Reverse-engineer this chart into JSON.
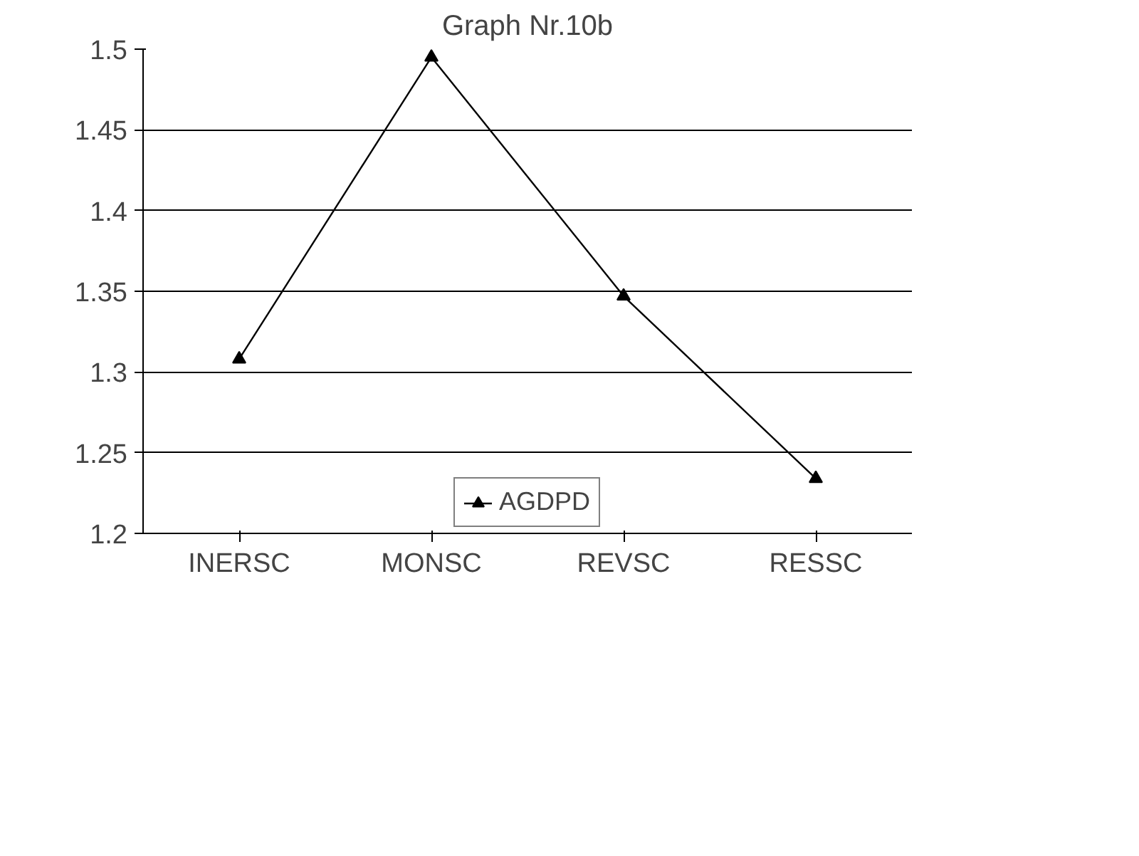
{
  "chart_data": {
    "type": "line",
    "title": "Graph Nr.10b",
    "categories": [
      "INERSC",
      "MONSC",
      "REVSC",
      "RESSC"
    ],
    "series": [
      {
        "name": "AGDPD",
        "color": "#000000",
        "values": [
          1.308,
          1.495,
          1.347,
          1.234
        ]
      }
    ],
    "ylim": [
      1.2,
      1.5
    ],
    "yticks": [
      1.2,
      1.25,
      1.3,
      1.35,
      1.4,
      1.45,
      1.5
    ],
    "grid": "y",
    "legend": "bottom",
    "marker": "triangle",
    "line_style": "solid"
  }
}
